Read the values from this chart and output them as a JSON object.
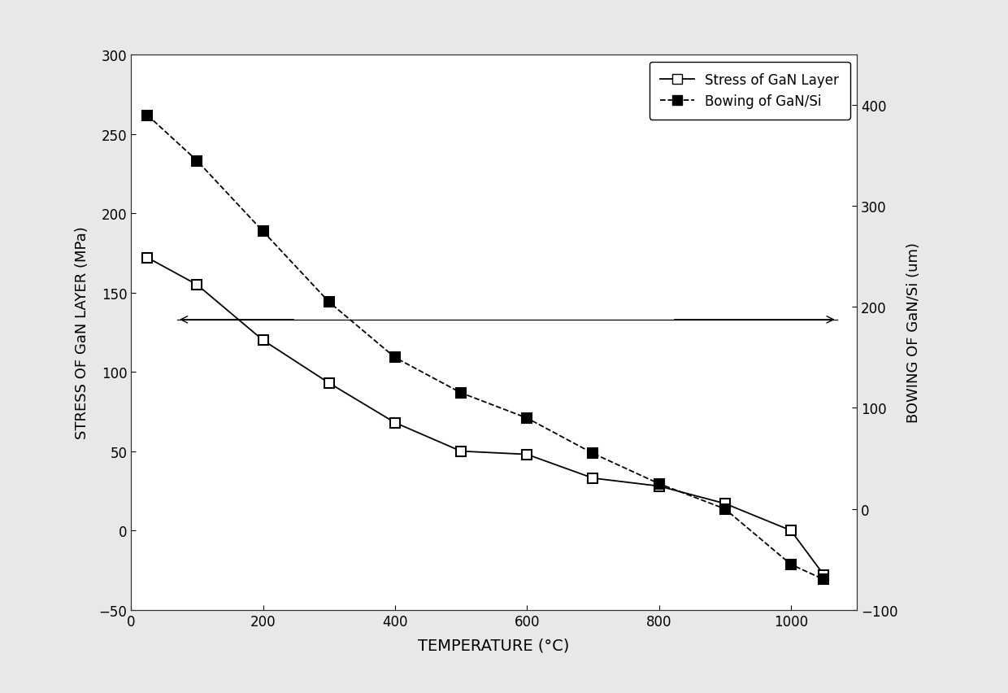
{
  "stress_temp": [
    25,
    100,
    200,
    300,
    400,
    500,
    600,
    700,
    800,
    900,
    1000,
    1050
  ],
  "stress_values": [
    172,
    155,
    120,
    93,
    68,
    50,
    48,
    33,
    28,
    17,
    0,
    -28
  ],
  "bowing_temp": [
    25,
    100,
    200,
    300,
    400,
    500,
    600,
    700,
    800,
    900,
    1000,
    1050
  ],
  "bowing_values": [
    390,
    345,
    275,
    205,
    150,
    115,
    90,
    55,
    25,
    0,
    -55,
    -70
  ],
  "xlabel": "TEMPERATURE (°C)",
  "ylabel_left": "STRESS OF GaN LAYER (MPa)",
  "ylabel_right": "BOWING OF GaN/Si (um)",
  "legend_stress": "Stress of GaN Layer",
  "legend_bowing": "Bowing of GaN/Si",
  "xlim": [
    0,
    1100
  ],
  "ylim_left": [
    -50,
    300
  ],
  "ylim_right": [
    -100,
    450
  ],
  "xticks": [
    0,
    200,
    400,
    600,
    800,
    1000
  ],
  "yticks_left": [
    -50,
    0,
    50,
    100,
    150,
    200,
    250,
    300
  ],
  "yticks_right": [
    -100,
    0,
    100,
    200,
    300,
    400
  ],
  "line_color": "#000000",
  "bg_color": "#ffffff",
  "figure_bg": "#f0f0f0"
}
